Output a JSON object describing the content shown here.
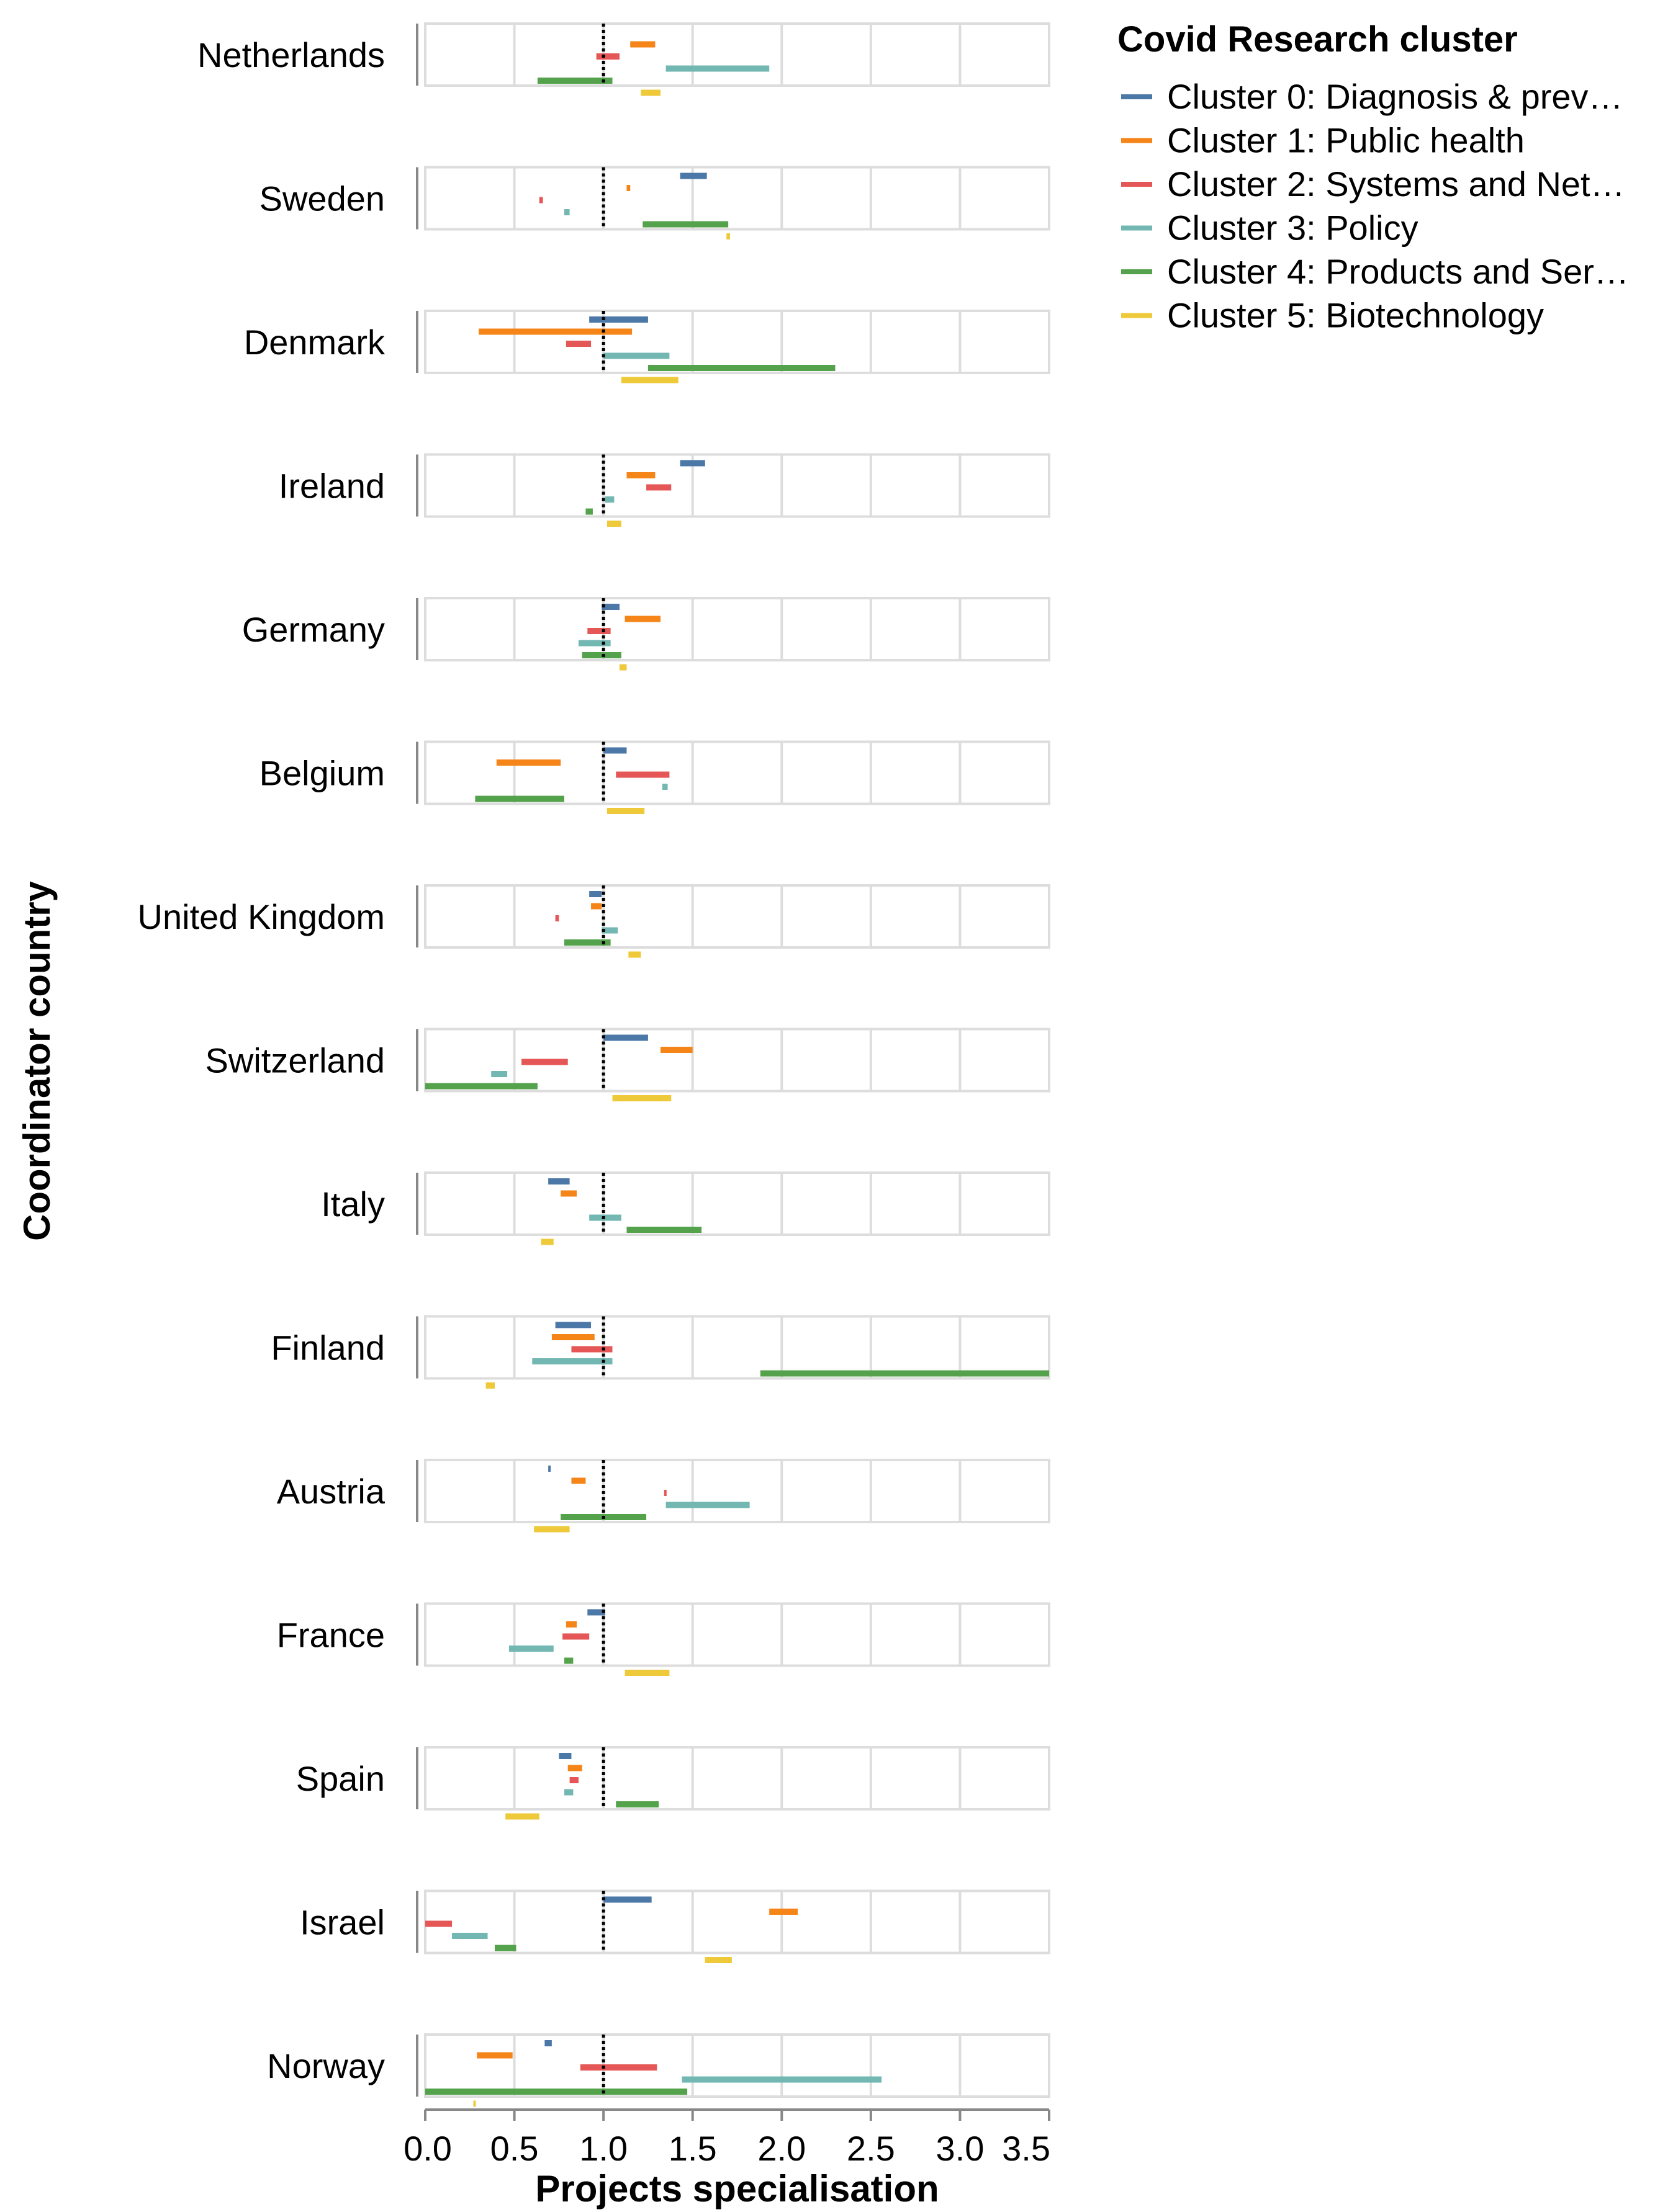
{
  "chart_data": {
    "type": "range-bar",
    "x_title": "Projects specialisation",
    "y_title": "Coordinator country",
    "x_ticks": [
      "0.0",
      "0.5",
      "1.0",
      "1.5",
      "2.0",
      "2.5",
      "3.0",
      "3.5"
    ],
    "x_range": [
      0,
      3.5
    ],
    "reference_line": 1.0,
    "legend_title": "Covid Research cluster",
    "series": [
      {
        "name": "Cluster 0: Diagnosis & prev…",
        "color": "#4C78A8"
      },
      {
        "name": "Cluster 1: Public health",
        "color": "#F58518"
      },
      {
        "name": "Cluster 2: Systems and Net…",
        "color": "#E45756"
      },
      {
        "name": "Cluster 3: Policy",
        "color": "#72B7B2"
      },
      {
        "name": "Cluster 4: Products and Ser…",
        "color": "#54A24B"
      },
      {
        "name": "Cluster 5: Biotechnology",
        "color": "#EECA3B"
      }
    ],
    "countries": [
      {
        "name": "Netherlands",
        "ranges": [
          null,
          [
            1.15,
            1.29
          ],
          [
            0.96,
            1.09
          ],
          [
            1.35,
            1.93
          ],
          [
            0.63,
            1.05
          ],
          [
            1.21,
            1.32
          ]
        ]
      },
      {
        "name": "Sweden",
        "ranges": [
          [
            1.43,
            1.58
          ],
          [
            1.13,
            1.15
          ],
          [
            0.64,
            0.66
          ],
          [
            0.78,
            0.81
          ],
          [
            1.22,
            1.7
          ],
          [
            1.69,
            1.71
          ]
        ]
      },
      {
        "name": "Denmark",
        "ranges": [
          [
            0.92,
            1.25
          ],
          [
            0.3,
            1.16
          ],
          [
            0.79,
            0.93
          ],
          [
            1.0,
            1.37
          ],
          [
            1.25,
            2.3
          ],
          [
            1.1,
            1.42
          ]
        ]
      },
      {
        "name": "Ireland",
        "ranges": [
          [
            1.43,
            1.57
          ],
          [
            1.13,
            1.29
          ],
          [
            1.24,
            1.38
          ],
          [
            1.01,
            1.06
          ],
          [
            0.9,
            0.94
          ],
          [
            1.02,
            1.1
          ]
        ]
      },
      {
        "name": "Germany",
        "ranges": [
          [
            0.99,
            1.09
          ],
          [
            1.12,
            1.32
          ],
          [
            0.91,
            1.04
          ],
          [
            0.86,
            1.04
          ],
          [
            0.88,
            1.1
          ],
          [
            1.09,
            1.13
          ]
        ]
      },
      {
        "name": "Belgium",
        "ranges": [
          [
            1.0,
            1.13
          ],
          [
            0.4,
            0.76
          ],
          [
            1.07,
            1.37
          ],
          [
            1.33,
            1.36
          ],
          [
            0.28,
            0.78
          ],
          [
            1.02,
            1.23
          ]
        ]
      },
      {
        "name": "United Kingdom",
        "ranges": [
          [
            0.92,
            0.99
          ],
          [
            0.93,
            0.99
          ],
          [
            0.73,
            0.75
          ],
          [
            0.99,
            1.08
          ],
          [
            0.78,
            1.04
          ],
          [
            1.14,
            1.21
          ]
        ]
      },
      {
        "name": "Switzerland",
        "ranges": [
          [
            1.0,
            1.25
          ],
          [
            1.32,
            1.5
          ],
          [
            0.54,
            0.8
          ],
          [
            0.37,
            0.46
          ],
          [
            0.0,
            0.63
          ],
          [
            1.05,
            1.38
          ]
        ]
      },
      {
        "name": "Italy",
        "ranges": [
          [
            0.69,
            0.81
          ],
          [
            0.76,
            0.85
          ],
          null,
          [
            0.92,
            1.1
          ],
          [
            1.13,
            1.55
          ],
          [
            0.65,
            0.72
          ]
        ]
      },
      {
        "name": "Finland",
        "ranges": [
          [
            0.73,
            0.93
          ],
          [
            0.71,
            0.95
          ],
          [
            0.82,
            1.05
          ],
          [
            0.6,
            1.05
          ],
          [
            1.88,
            3.5
          ],
          [
            0.34,
            0.39
          ]
        ]
      },
      {
        "name": "Austria",
        "ranges": [
          [
            0.69,
            0.7
          ],
          [
            0.82,
            0.9
          ],
          [
            1.34,
            1.35
          ],
          [
            1.35,
            1.82
          ],
          [
            0.76,
            1.24
          ],
          [
            0.61,
            0.81
          ]
        ]
      },
      {
        "name": "France",
        "ranges": [
          [
            0.91,
            1.01
          ],
          [
            0.79,
            0.85
          ],
          [
            0.77,
            0.92
          ],
          [
            0.47,
            0.72
          ],
          [
            0.78,
            0.83
          ],
          [
            1.12,
            1.37
          ]
        ]
      },
      {
        "name": "Spain",
        "ranges": [
          [
            0.75,
            0.82
          ],
          [
            0.8,
            0.88
          ],
          [
            0.81,
            0.86
          ],
          [
            0.78,
            0.83
          ],
          [
            1.07,
            1.31
          ],
          [
            0.45,
            0.64
          ]
        ]
      },
      {
        "name": "Israel",
        "ranges": [
          [
            1.0,
            1.27
          ],
          [
            1.93,
            2.09
          ],
          [
            0.0,
            0.15
          ],
          [
            0.15,
            0.35
          ],
          [
            0.39,
            0.51
          ],
          [
            1.57,
            1.72
          ]
        ]
      },
      {
        "name": "Norway",
        "ranges": [
          [
            0.67,
            0.71
          ],
          [
            0.29,
            0.49
          ],
          [
            0.87,
            1.3
          ],
          [
            1.44,
            2.56
          ],
          [
            0.0,
            1.47
          ],
          [
            0.27,
            0.28
          ]
        ]
      }
    ]
  }
}
